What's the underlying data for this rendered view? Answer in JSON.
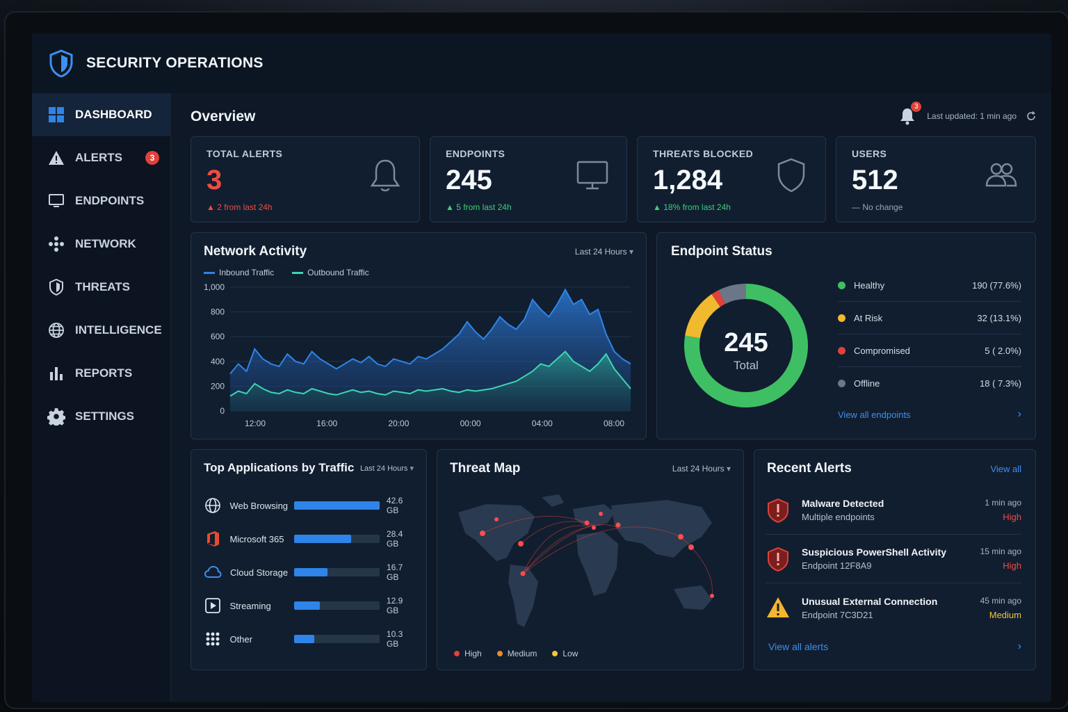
{
  "app": {
    "title": "SECURITY OPERATIONS"
  },
  "sidebar": {
    "items": [
      {
        "label": "DASHBOARD",
        "icon": "grid-icon",
        "active": true
      },
      {
        "label": "ALERTS",
        "icon": "warning-icon",
        "badge": "3"
      },
      {
        "label": "ENDPOINTS",
        "icon": "monitor-icon"
      },
      {
        "label": "NETWORK",
        "icon": "network-icon"
      },
      {
        "label": "THREATS",
        "icon": "shield-icon"
      },
      {
        "label": "INTELLIGENCE",
        "icon": "globe-icon"
      },
      {
        "label": "REPORTS",
        "icon": "bar-chart-icon"
      },
      {
        "label": "SETTINGS",
        "icon": "gear-icon"
      }
    ]
  },
  "header": {
    "title": "Overview",
    "notifications": "3",
    "last_updated": "Last updated: 1 min ago"
  },
  "kpis": [
    {
      "label": "TOTAL ALERTS",
      "value": "3",
      "delta_value": "2",
      "delta_text": "from last 24h",
      "trend": "up",
      "color": "#ef4b43"
    },
    {
      "label": "ENDPOINTS",
      "value": "245",
      "delta_value": "5",
      "delta_text": "from last 24h",
      "trend": "up",
      "color": "#3ecf7a"
    },
    {
      "label": "THREATS BLOCKED",
      "value": "1,284",
      "delta_value": "18%",
      "delta_text": "from last 24h",
      "trend": "up",
      "color": "#3ecf7a"
    },
    {
      "label": "USERS",
      "value": "512",
      "delta_value": "",
      "delta_text": "No change",
      "trend": "flat",
      "color": "#9aa6b4"
    }
  ],
  "network_activity": {
    "title": "Network Activity",
    "range": "Last 24 Hours"
  },
  "chart_data": {
    "type": "area",
    "title": "Network Activity",
    "xlabel": "",
    "ylabel": "",
    "ylim": [
      0,
      1000
    ],
    "yticks": [
      "0",
      "200",
      "400",
      "600",
      "800",
      "1,000"
    ],
    "xticks": [
      "12:00",
      "16:00",
      "20:00",
      "00:00",
      "04:00",
      "08:00"
    ],
    "grid": true,
    "legend": "top-left",
    "series": [
      {
        "name": "Inbound Traffic",
        "color": "#2e84e8",
        "values": [
          300,
          380,
          320,
          500,
          420,
          380,
          360,
          460,
          400,
          380,
          480,
          420,
          380,
          340,
          380,
          420,
          390,
          440,
          380,
          360,
          420,
          400,
          380,
          440,
          420,
          460,
          500,
          560,
          620,
          720,
          640,
          580,
          660,
          760,
          700,
          660,
          740,
          900,
          820,
          760,
          860,
          980,
          860,
          900,
          780,
          820,
          620,
          480,
          420,
          380
        ]
      },
      {
        "name": "Outbound Traffic",
        "color": "#3fd6b0",
        "values": [
          120,
          160,
          140,
          220,
          180,
          150,
          140,
          170,
          150,
          140,
          180,
          160,
          140,
          130,
          150,
          170,
          150,
          160,
          140,
          130,
          160,
          150,
          140,
          170,
          160,
          170,
          180,
          160,
          150,
          170,
          160,
          170,
          180,
          200,
          220,
          240,
          280,
          320,
          380,
          360,
          420,
          480,
          400,
          360,
          320,
          380,
          460,
          340,
          260,
          180
        ]
      }
    ]
  },
  "endpoint_status": {
    "title": "Endpoint Status",
    "total": "245",
    "total_label": "Total",
    "items": [
      {
        "label": "Healthy",
        "value": "190 (77.6%)",
        "count": 190,
        "color": "#3fbf63"
      },
      {
        "label": "At Risk",
        "value": "32 (13.1%)",
        "count": 32,
        "color": "#f0b92e"
      },
      {
        "label": "Compromised",
        "value": "5 ( 2.0%)",
        "count": 5,
        "color": "#e0413a"
      },
      {
        "label": "Offline",
        "value": "18 ( 7.3%)",
        "count": 18,
        "color": "#6b7788"
      }
    ],
    "link": "View all endpoints"
  },
  "top_apps": {
    "title": "Top Applications by Traffic",
    "range": "Last 24 Hours",
    "items": [
      {
        "name": "Web Browsing",
        "size": "42.6 GB",
        "gb": 42.6,
        "icon": "globe-icon"
      },
      {
        "name": "Microsoft 365",
        "size": "28.4 GB",
        "gb": 28.4,
        "icon": "office-icon"
      },
      {
        "name": "Cloud Storage",
        "size": "16.7 GB",
        "gb": 16.7,
        "icon": "cloud-icon"
      },
      {
        "name": "Streaming",
        "size": "12.9 GB",
        "gb": 12.9,
        "icon": "play-icon"
      },
      {
        "name": "Other",
        "size": "10.3 GB",
        "gb": 10.3,
        "icon": "dots-grid-icon"
      }
    ]
  },
  "threat_map": {
    "title": "Threat Map",
    "range": "Last 24 Hours",
    "legend": [
      {
        "label": "High",
        "color": "#e0413a"
      },
      {
        "label": "Medium",
        "color": "#f08a2e"
      },
      {
        "label": "Low",
        "color": "#f5c53a"
      }
    ]
  },
  "recent_alerts": {
    "title": "Recent Alerts",
    "view_all": "View all",
    "items": [
      {
        "title": "Malware Detected",
        "subtitle": "Multiple endpoints",
        "time": "1 min ago",
        "severity": "High",
        "icon": "shield-alert-icon"
      },
      {
        "title": "Suspicious PowerShell Activity",
        "subtitle": "Endpoint 12F8A9",
        "time": "15 min ago",
        "severity": "High",
        "icon": "shield-alert-icon"
      },
      {
        "title": "Unusual External Connection",
        "subtitle": "Endpoint 7C3D21",
        "time": "45 min ago",
        "severity": "Medium",
        "icon": "warning-triangle-icon"
      }
    ],
    "link": "View all alerts"
  }
}
